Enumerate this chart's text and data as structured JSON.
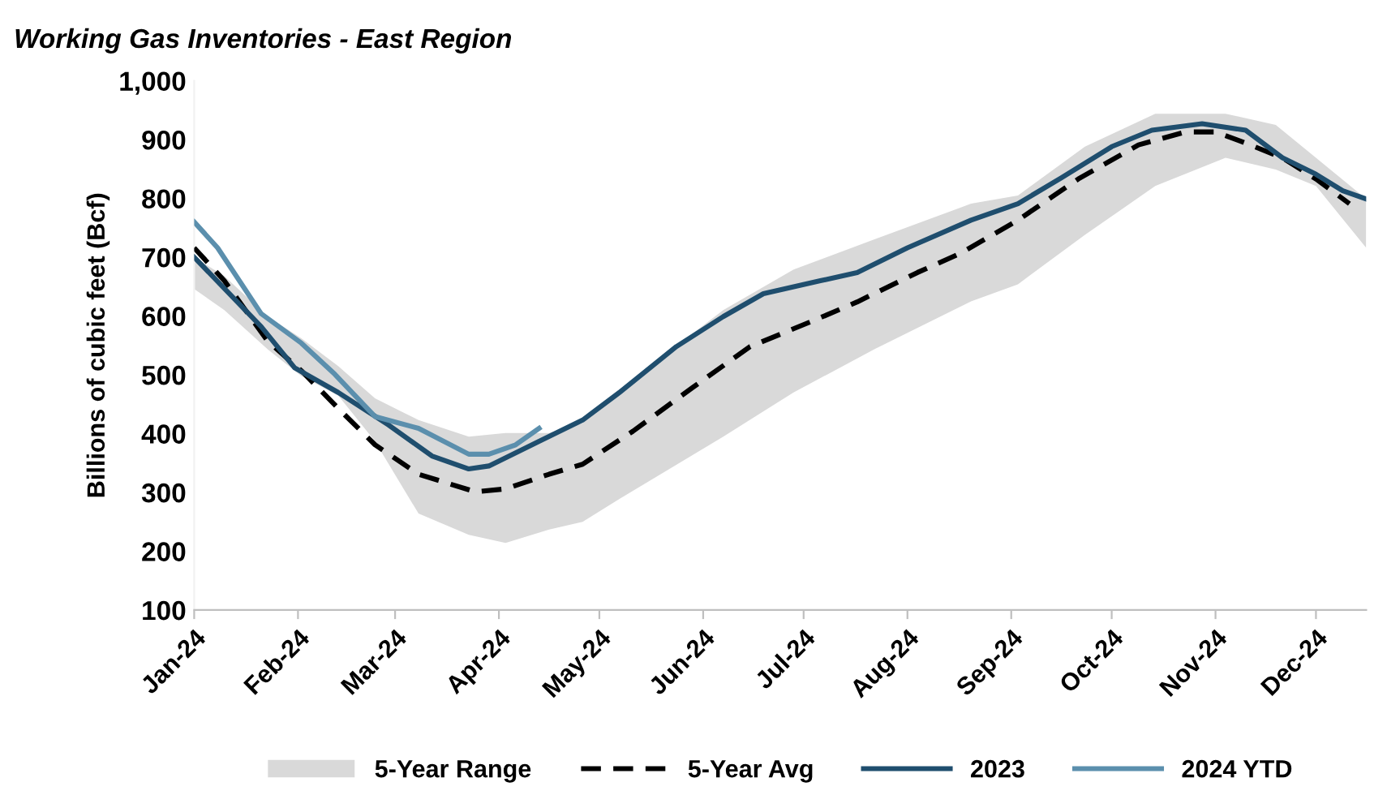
{
  "chart_data": {
    "type": "line",
    "title": "Working Gas Inventories - East Region",
    "ylabel": "Billions of cubic feet (Bcf)",
    "xlim": [
      "2024-01-01",
      "2024-12-16"
    ],
    "xticks": [
      {
        "value": "2024-01-01",
        "label": "Jan-24"
      },
      {
        "value": "2024-02-01",
        "label": "Feb-24"
      },
      {
        "value": "2024-03-01",
        "label": "Mar-24"
      },
      {
        "value": "2024-04-01",
        "label": "Apr-24"
      },
      {
        "value": "2024-05-01",
        "label": "May-24"
      },
      {
        "value": "2024-06-01",
        "label": "Jun-24"
      },
      {
        "value": "2024-07-01",
        "label": "Jul-24"
      },
      {
        "value": "2024-08-01",
        "label": "Aug-24"
      },
      {
        "value": "2024-09-01",
        "label": "Sep-24"
      },
      {
        "value": "2024-10-01",
        "label": "Oct-24"
      },
      {
        "value": "2024-11-01",
        "label": "Nov-24"
      },
      {
        "value": "2024-12-01",
        "label": "Dec-24"
      }
    ],
    "ylim": [
      100,
      1000
    ],
    "yticks": [
      100,
      200,
      300,
      400,
      500,
      600,
      700,
      800,
      900,
      {
        "value": 1000,
        "label": "1,000"
      }
    ],
    "grid": false,
    "legend": "bottom",
    "series": [
      {
        "name": "5-Year Range",
        "type": "area",
        "color": "#d9d9d9",
        "x": [
          "2024-01-01",
          "2024-01-10",
          "2024-01-23",
          "2024-02-02",
          "2024-02-13",
          "2024-02-24",
          "2024-03-08",
          "2024-03-23",
          "2024-04-03",
          "2024-04-16",
          "2024-04-26",
          "2024-05-07",
          "2024-06-07",
          "2024-06-28",
          "2024-07-22",
          "2024-08-20",
          "2024-09-03",
          "2024-09-23",
          "2024-10-14",
          "2024-11-04",
          "2024-11-19",
          "2024-12-01",
          "2024-12-16"
        ],
        "values": [
          null,
          null,
          null,
          null,
          null,
          null,
          null,
          null,
          null,
          null,
          null,
          null,
          null,
          null,
          null,
          null,
          null,
          null,
          null,
          null,
          null,
          null,
          null
        ],
        "lower": [
          646,
          610,
          543,
          498,
          465,
          387,
          264,
          228,
          214,
          237,
          250,
          289,
          395,
          470,
          543,
          625,
          654,
          738,
          821,
          869,
          849,
          821,
          716
        ],
        "upper": [
          700,
          668,
          599,
          562,
          515,
          460,
          423,
          395,
          401,
          401,
          418,
          475,
          610,
          679,
          730,
          791,
          805,
          888,
          944,
          944,
          925,
          869,
          799
        ]
      },
      {
        "name": "5-Year Avg",
        "color": "#000000",
        "line_style": "dashed",
        "x": [
          "2024-01-01",
          "2024-01-10",
          "2024-01-23",
          "2024-02-02",
          "2024-02-13",
          "2024-02-24",
          "2024-03-08",
          "2024-03-25",
          "2024-04-03",
          "2024-04-16",
          "2024-04-26",
          "2024-05-11",
          "2024-05-29",
          "2024-06-15",
          "2024-07-03",
          "2024-07-17",
          "2024-08-04",
          "2024-08-17",
          "2024-09-03",
          "2024-09-21",
          "2024-10-09",
          "2024-10-23",
          "2024-11-01",
          "2024-11-10",
          "2024-11-21",
          "2024-12-01",
          "2024-12-11"
        ],
        "values": [
          716,
          660,
          557,
          507,
          443,
          381,
          331,
          301,
          306,
          331,
          348,
          404,
          479,
          548,
          590,
          624,
          674,
          707,
          763,
          833,
          891,
          913,
          913,
          894,
          869,
          833,
          791
        ]
      },
      {
        "name": "2023",
        "color": "#1f4e6e",
        "line_style": "solid",
        "x": [
          "2024-01-01",
          "2024-01-21",
          "2024-01-31",
          "2024-02-13",
          "2024-02-28",
          "2024-03-12",
          "2024-03-23",
          "2024-03-29",
          "2024-04-13",
          "2024-04-26",
          "2024-05-07",
          "2024-05-24",
          "2024-06-07",
          "2024-06-19",
          "2024-07-06",
          "2024-07-17",
          "2024-08-01",
          "2024-08-20",
          "2024-09-03",
          "2024-09-16",
          "2024-10-01",
          "2024-10-13",
          "2024-10-28",
          "2024-11-10",
          "2024-11-21",
          "2024-12-01",
          "2024-12-09",
          "2024-12-16"
        ],
        "values": [
          700,
          582,
          512,
          470,
          415,
          362,
          340,
          345,
          387,
          423,
          470,
          548,
          599,
          638,
          660,
          674,
          716,
          763,
          791,
          835,
          888,
          916,
          927,
          916,
          869,
          841,
          813,
          799
        ]
      },
      {
        "name": "2024 YTD",
        "color": "#5b8fad",
        "line_style": "solid",
        "x": [
          "2024-01-01",
          "2024-01-08",
          "2024-01-21",
          "2024-02-02",
          "2024-02-12",
          "2024-02-24",
          "2024-03-08",
          "2024-03-23",
          "2024-03-29",
          "2024-04-06",
          "2024-04-13"
        ],
        "values": [
          760,
          716,
          604,
          554,
          501,
          429,
          409,
          365,
          365,
          381,
          409
        ]
      }
    ]
  }
}
